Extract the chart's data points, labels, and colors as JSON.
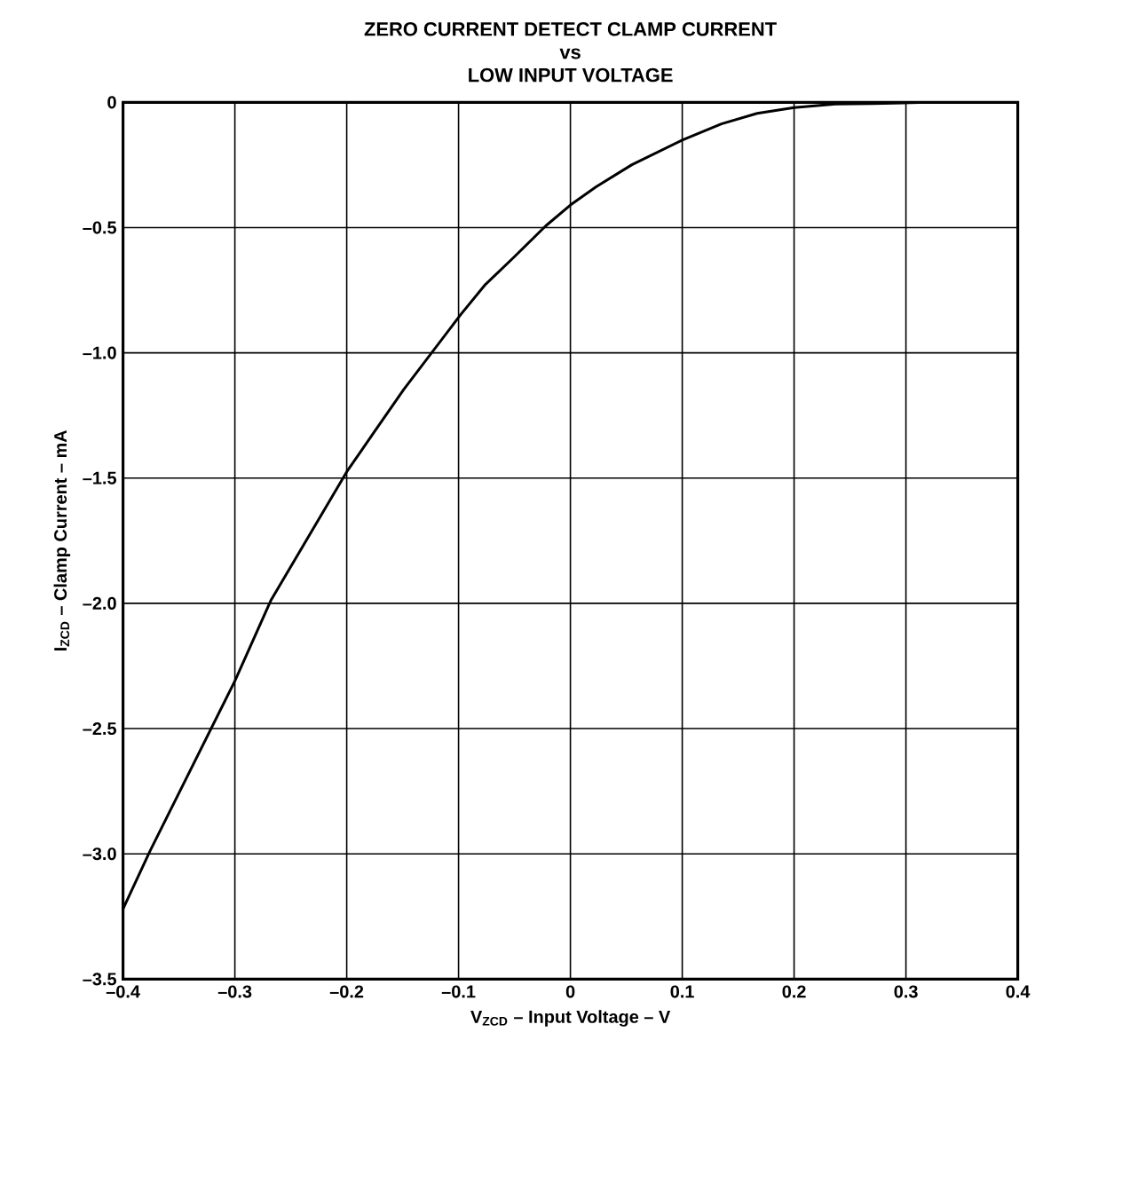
{
  "chart_data": {
    "type": "line",
    "title": "ZERO CURRENT DETECT CLAMP CURRENT\nvs\nLOW INPUT VOLTAGE",
    "xlabel": "V$_{ZCD}$ – Input Voltage – V",
    "ylabel": "I$_{ZCD}$ – Clamp Current – mA",
    "x": [
      -0.4,
      -0.376,
      -0.3,
      -0.268,
      -0.2,
      -0.176,
      -0.149,
      -0.098,
      -0.076,
      -0.05,
      -0.022,
      0,
      0.023,
      0.055,
      0.1,
      0.135,
      0.167,
      0.2,
      0.237,
      0.27,
      0.32,
      0.376,
      0.4
    ],
    "series": [
      {
        "color": "#000000",
        "values": [
          -3.22,
          -2.99,
          -2.31,
          -1.99,
          -1.475,
          -1.32,
          -1.146,
          -0.847,
          -0.727,
          -0.616,
          -0.493,
          -0.41,
          -0.337,
          -0.249,
          -0.151,
          -0.086,
          -0.044,
          -0.021,
          -0.007,
          -0.005,
          0,
          0,
          0
        ]
      }
    ],
    "xlim": [
      -0.4,
      0.4
    ],
    "ylim": [
      -3.5,
      0
    ],
    "xticks": [
      {
        "value": -0.4,
        "label": "–0.4"
      },
      {
        "value": -0.3,
        "label": "–0.3"
      },
      {
        "value": -0.2,
        "label": "–0.2"
      },
      {
        "value": -0.1,
        "label": "–0.1"
      },
      0,
      0.1,
      0.2,
      0.3,
      0.4
    ],
    "yticks": [
      0,
      {
        "value": -0.5,
        "label": "–0.5"
      },
      {
        "value": -1.0,
        "label": "–1.0"
      },
      {
        "value": -1.5,
        "label": "–1.5"
      },
      {
        "value": -2.0,
        "label": "–2.0"
      },
      {
        "value": -2.5,
        "label": "–2.5"
      },
      {
        "value": -3.0,
        "label": "–3.0"
      },
      {
        "value": -3.5,
        "label": "–3.5"
      }
    ],
    "grid": true,
    "marker": "none",
    "line_style": "solid"
  }
}
